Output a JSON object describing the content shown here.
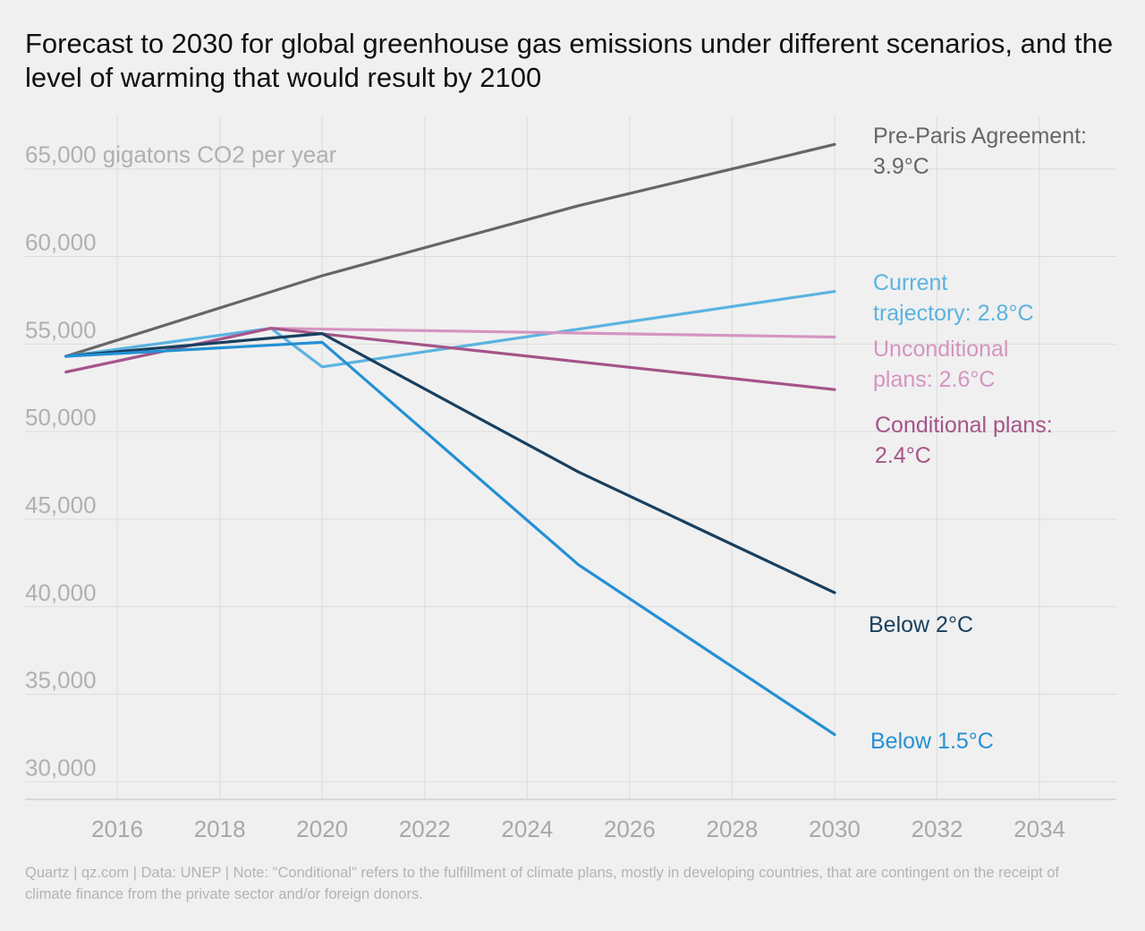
{
  "chart_data": {
    "type": "line",
    "title": "Forecast to 2030 for global greenhouse gas emissions under different scenarios, and the level of warming that would result by 2100",
    "ylabel": "gigatons CO2 per year",
    "top_tick_label": "65,000 gigatons CO2 per year",
    "ylim": [
      29000,
      68000
    ],
    "xlim": [
      2014.2,
      2035.5
    ],
    "y_ticks": [
      {
        "value": 30000,
        "label": "30,000"
      },
      {
        "value": 35000,
        "label": "35,000"
      },
      {
        "value": 40000,
        "label": "40,000"
      },
      {
        "value": 45000,
        "label": "45,000"
      },
      {
        "value": 50000,
        "label": "50,000"
      },
      {
        "value": 55000,
        "label": "55,000"
      },
      {
        "value": 60000,
        "label": "60,000"
      },
      {
        "value": 65000,
        "label": "65,000"
      }
    ],
    "x_ticks": [
      {
        "value": 2016,
        "label": "2016"
      },
      {
        "value": 2018,
        "label": "2018"
      },
      {
        "value": 2020,
        "label": "2020"
      },
      {
        "value": 2022,
        "label": "2022"
      },
      {
        "value": 2024,
        "label": "2024"
      },
      {
        "value": 2026,
        "label": "2026"
      },
      {
        "value": 2028,
        "label": "2028"
      },
      {
        "value": 2030,
        "label": "2030"
      },
      {
        "value": 2032,
        "label": "2032"
      },
      {
        "value": 2034,
        "label": "2034"
      }
    ],
    "grid": true,
    "series": [
      {
        "name": "Pre-Paris Agreement: 3.9°C",
        "label_lines": [
          "Pre-Paris Agreement:",
          "3.9°C"
        ],
        "color": "#666666",
        "points": [
          [
            2015,
            54300
          ],
          [
            2020,
            58900
          ],
          [
            2025,
            62900
          ],
          [
            2030,
            66400
          ]
        ]
      },
      {
        "name": "Current trajectory: 2.8°C",
        "label_lines": [
          "Current",
          "trajectory: 2.8°C"
        ],
        "color": "#5bb3e0",
        "points": [
          [
            2015,
            54300
          ],
          [
            2019,
            55900
          ],
          [
            2020,
            53700
          ],
          [
            2030,
            58000
          ]
        ]
      },
      {
        "name": "Unconditional plans: 2.6°C",
        "label_lines": [
          "Unconditional",
          "plans: 2.6°C"
        ],
        "color": "#d595c0",
        "points": [
          [
            2015,
            53400
          ],
          [
            2019,
            55900
          ],
          [
            2030,
            55400
          ]
        ]
      },
      {
        "name": "Conditional plans: 2.4°C",
        "label_lines": [
          "Conditional plans:",
          "2.4°C"
        ],
        "color": "#a5548a",
        "points": [
          [
            2015,
            53400
          ],
          [
            2019,
            55900
          ],
          [
            2030,
            52400
          ]
        ]
      },
      {
        "name": "Below 2°C",
        "label_lines": [
          "Below 2°C"
        ],
        "color": "#183f5e",
        "points": [
          [
            2015,
            54300
          ],
          [
            2020,
            55600
          ],
          [
            2025,
            47700
          ],
          [
            2030,
            40800
          ]
        ]
      },
      {
        "name": "Below 1.5°C",
        "label_lines": [
          "Below 1.5°C"
        ],
        "color": "#2490d4",
        "points": [
          [
            2015,
            54300
          ],
          [
            2020,
            55100
          ],
          [
            2025,
            42400
          ],
          [
            2030,
            32700
          ]
        ]
      }
    ]
  },
  "footer": "Quartz | qz.com | Data: UNEP | Note: \"Conditional\" refers to the fulfillment of climate plans, mostly in developing countries, that are contingent on the receipt of climate finance from the private sector and/or foreign donors."
}
